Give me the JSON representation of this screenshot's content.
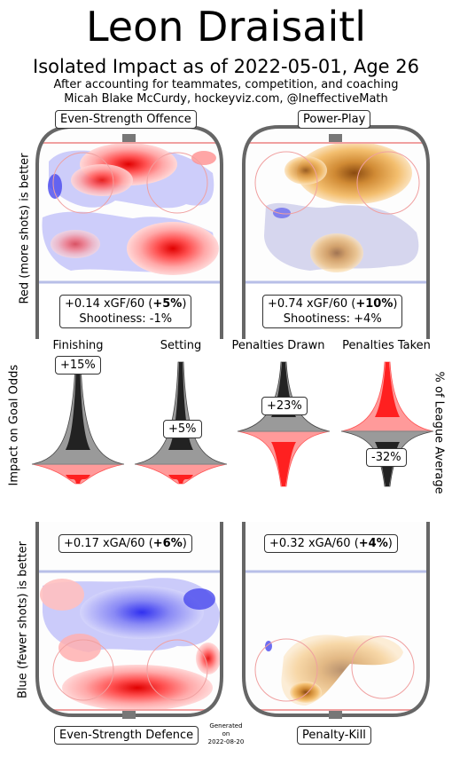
{
  "header": {
    "player_name": "Leon Draisaitl",
    "subtitle": "Isolated Impact as of 2022-05-01, Age 26",
    "note": "After accounting for teammates, competition, and coaching",
    "credit": "Micah Blake McCurdy, hockeyviz.com, @IneffectiveMath"
  },
  "side_labels": {
    "offence": "Red (more shots) is better",
    "middle": "Impact on Goal Odds",
    "defence": "Blue (fewer shots) is better",
    "right": "% of League Average"
  },
  "colors": {
    "red": "#ff0000",
    "blue": "#3333ff",
    "orange": "#f5a742",
    "rink": "#666666"
  },
  "panels": {
    "es_offence": {
      "title": "Even-Strength Offence",
      "rate_value": "+0.14 xGF/60",
      "pct": "+5%",
      "shootiness": "Shootiness: -1%"
    },
    "power_play": {
      "title": "Power-Play",
      "rate_value": "+0.74 xGF/60",
      "pct": "+10%",
      "shootiness": "Shootiness: +4%"
    },
    "es_defence": {
      "title": "Even-Strength Defence",
      "rate_value": "+0.17 xGA/60",
      "pct": "+6%"
    },
    "penalty_kill": {
      "title": "Penalty-Kill",
      "rate_value": "+0.32 xGA/60",
      "pct": "+4%"
    }
  },
  "chart_data": {
    "type": "violin",
    "labels_print": {
      "finishing": {
        "name": "Finishing",
        "label": "+15%"
      },
      "setting": {
        "name": "Setting",
        "label": "+5%"
      },
      "penalties_drawn": {
        "name": "Penalties Drawn",
        "label": "+23%"
      },
      "penalties_taken": {
        "name": "Penalties Taken",
        "label": "-32%"
      }
    },
    "series": [
      {
        "name": "Finishing",
        "value": 15
      },
      {
        "name": "Setting",
        "value": 5
      },
      {
        "name": "Penalties Drawn",
        "value": 23
      },
      {
        "name": "Penalties Taken",
        "value": -32
      }
    ]
  },
  "footer": {
    "generated": "Generated",
    "on": "on",
    "date": "2022-08-20"
  }
}
